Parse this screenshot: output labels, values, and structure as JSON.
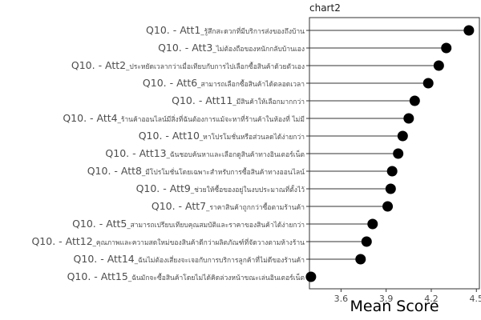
{
  "chart_data": {
    "type": "lollipop",
    "title": "chart2",
    "xlabel": "Mean Score",
    "ylabel": "",
    "xlim": [
      3.39,
      4.52
    ],
    "xticks": [
      3.6,
      3.9,
      4.2,
      4.5
    ],
    "xtick_labels": [
      "3.6",
      "3.9",
      "4.2",
      "4.5"
    ],
    "grid": false,
    "baseline": 3.39,
    "point_color": "#000000",
    "stem_color": "#333333",
    "axis_color": "#333333",
    "items": [
      {
        "label": "Q10. - Att1",
        "desc": "_รู้สึกสะดวกที่มีบริการส่งของถึงบ้าน",
        "value": 4.45
      },
      {
        "label": "Q10. - Att3",
        "desc": "_ไม่ต้องถือของหนักกลับบ้านเอง",
        "value": 4.3
      },
      {
        "label": "Q10. - Att2",
        "desc": "_ประหยัดเวลากว่าเมื่อเทียบกับการไปเลือกซื้อสินค้าด้วยตัวเอง",
        "value": 4.25
      },
      {
        "label": "Q10. - Att6",
        "desc": "_สามารถเลือกซื้อสินค้าได้ตลอดเวลา",
        "value": 4.18
      },
      {
        "label": "Q10. - Att11",
        "desc": "_มีสินค้าให้เลือกมากกว่า",
        "value": 4.09
      },
      {
        "label": "Q10. - Att4",
        "desc": "_ร้านค้าออนไลน์มีสิ่งที่ฉันต้องการแม้จะหาที่ร้านค้าในห้องที่ ไม่มี",
        "value": 4.05
      },
      {
        "label": "Q10. - Att10",
        "desc": "_หาโปรโมชั่นหรือส่วนลดได้ง่ายกว่า",
        "value": 4.01
      },
      {
        "label": "Q10. - Att13",
        "desc": "_ฉันชอบค้นหาและเลือกดูสินค้าทางอินเตอร์เน็ต",
        "value": 3.98
      },
      {
        "label": "Q10. - Att8",
        "desc": "_มีโปรโมชั่นโดยเฉพาะสำหรับการซื้อสินค้าทางออนไลน์",
        "value": 3.94
      },
      {
        "label": "Q10. - Att9",
        "desc": "_ช่วยให้ซื้อของอยู่ในงบประมาณที่ตั้งไว้",
        "value": 3.93
      },
      {
        "label": "Q10. - Att7",
        "desc": "_ราคาสินค้าถูกกว่าซื้อตามร้านค้า",
        "value": 3.91
      },
      {
        "label": "Q10. - Att5",
        "desc": "_สามารถเปรียบเทียบคุณสมบัติและราคาของสินค้าได้ง่ายกว่า",
        "value": 3.81
      },
      {
        "label": "Q10. - Att12",
        "desc": "_คุณภาพและความสดใหม่ของสินค้าดีกว่าผลิตภัณฑ์ที่จัดวางตามห้างร้าน",
        "value": 3.77
      },
      {
        "label": "Q10. - Att14",
        "desc": "_ฉันไม่ต้องเสี่ยงจะเจอกับการบริการลูกค้าที่ไม่ดีของร้านค้า",
        "value": 3.73
      },
      {
        "label": "Q10. - Att15",
        "desc": "_ฉันมักจะซื้อสินค้าโดยไม่ได้คิดล่วงหน้าขณะเล่นอินเตอร์เน็ต",
        "value": 3.4
      }
    ]
  }
}
